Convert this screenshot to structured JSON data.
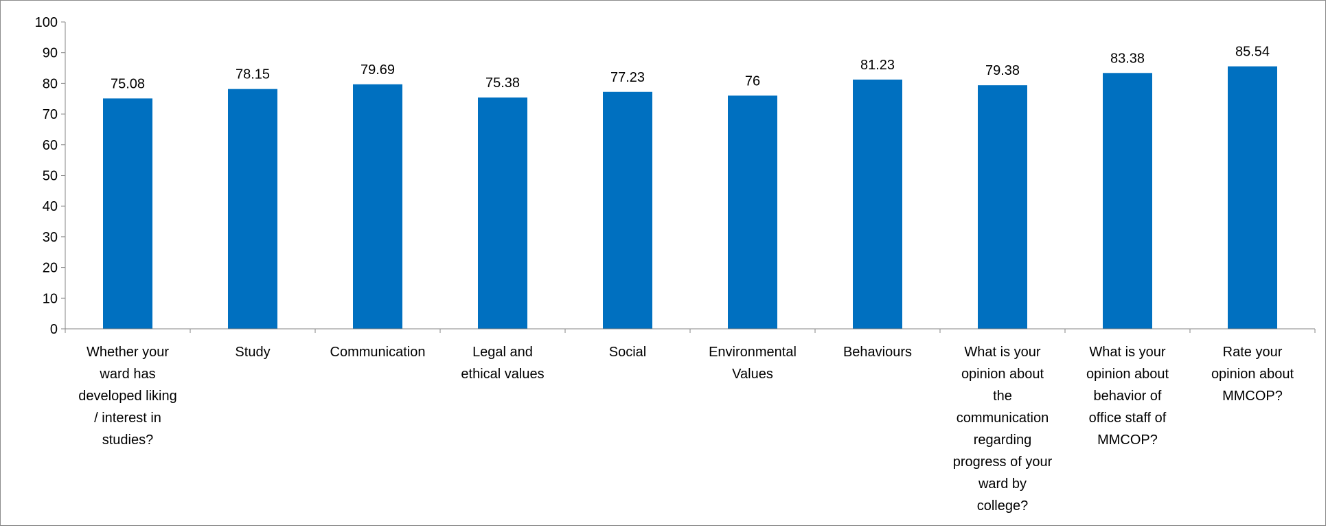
{
  "chart_data": {
    "type": "bar",
    "categories": [
      [
        "Whether your",
        "ward has",
        "developed liking",
        "/ interest in",
        "studies?"
      ],
      [
        "Study"
      ],
      [
        "Communication"
      ],
      [
        "Legal and",
        "ethical values"
      ],
      [
        "Social"
      ],
      [
        "Environmental",
        "Values"
      ],
      [
        "Behaviours"
      ],
      [
        "What is your",
        "opinion about",
        "the",
        "communication",
        "regarding",
        "progress of your",
        "ward by",
        "college?"
      ],
      [
        "What is your",
        "opinion about",
        "behavior of",
        "office staff of",
        "MMCOP?"
      ],
      [
        "Rate your",
        "opinion about",
        "MMCOP?"
      ]
    ],
    "values": [
      75.08,
      78.15,
      79.69,
      75.38,
      77.23,
      76,
      81.23,
      79.38,
      83.38,
      85.54
    ],
    "data_labels": [
      "75.08",
      "78.15",
      "79.69",
      "75.38",
      "77.23",
      "76",
      "81.23",
      "79.38",
      "83.38",
      "85.54"
    ],
    "ylim": [
      0,
      100
    ],
    "yticks": [
      0,
      10,
      20,
      30,
      40,
      50,
      60,
      70,
      80,
      90,
      100
    ],
    "grid": false,
    "legend": "none",
    "bar_color": "#0070C0",
    "axis_color": "#868686"
  }
}
